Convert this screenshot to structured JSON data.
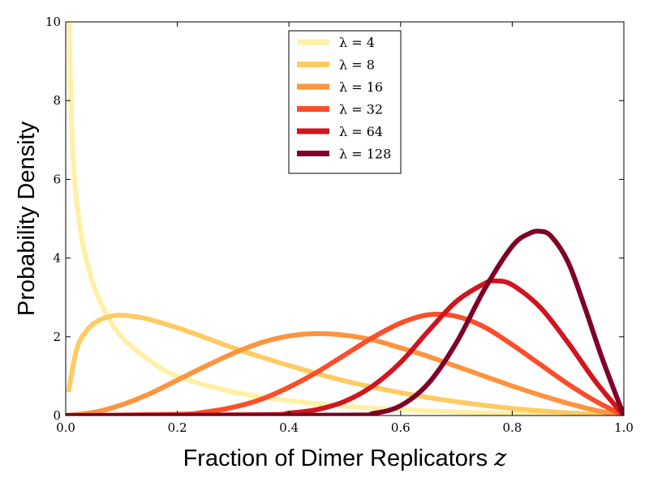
{
  "chart_data": {
    "type": "line",
    "xlabel": "Fraction of Dimer Replicators",
    "xlabel_var": "z",
    "ylabel": "Probability Density",
    "xlim": [
      0.0,
      1.0
    ],
    "ylim": [
      0,
      10
    ],
    "xticks": [
      "0.0",
      "0.2",
      "0.4",
      "0.6",
      "0.8",
      "1.0"
    ],
    "yticks": [
      "0",
      "2",
      "4",
      "6",
      "8",
      "10"
    ],
    "legend": {
      "position": "upper-center"
    },
    "grid": false,
    "series": [
      {
        "name": "λ = 4",
        "color": "#fff0a5",
        "x": [
          0.005,
          0.01,
          0.015,
          0.02,
          0.03,
          0.04,
          0.05,
          0.07,
          0.1,
          0.15,
          0.2,
          0.3,
          0.4,
          0.5,
          0.6,
          0.7,
          0.8,
          0.9,
          1.0
        ],
        "y": [
          10.6,
          7.6,
          6.2,
          5.4,
          4.4,
          3.8,
          3.3,
          2.65,
          2.0,
          1.4,
          1.0,
          0.6,
          0.38,
          0.24,
          0.15,
          0.09,
          0.05,
          0.02,
          0.0
        ]
      },
      {
        "name": "λ = 8",
        "color": "#fecb63",
        "x": [
          0.005,
          0.02,
          0.04,
          0.06,
          0.08,
          0.1,
          0.13,
          0.15,
          0.2,
          0.25,
          0.3,
          0.4,
          0.5,
          0.6,
          0.7,
          0.8,
          0.9,
          1.0
        ],
        "y": [
          0.6,
          1.7,
          2.2,
          2.42,
          2.52,
          2.55,
          2.5,
          2.44,
          2.23,
          1.98,
          1.72,
          1.27,
          0.88,
          0.58,
          0.35,
          0.18,
          0.07,
          0.0
        ]
      },
      {
        "name": "λ = 16",
        "color": "#fd9440",
        "x": [
          0.0,
          0.05,
          0.1,
          0.15,
          0.2,
          0.25,
          0.3,
          0.35,
          0.4,
          0.45,
          0.5,
          0.55,
          0.6,
          0.65,
          0.7,
          0.75,
          0.8,
          0.85,
          0.9,
          0.95,
          1.0
        ],
        "y": [
          0.0,
          0.08,
          0.27,
          0.55,
          0.9,
          1.25,
          1.58,
          1.85,
          2.02,
          2.08,
          2.04,
          1.92,
          1.72,
          1.5,
          1.25,
          1.0,
          0.75,
          0.52,
          0.31,
          0.13,
          0.0
        ]
      },
      {
        "name": "λ = 32",
        "color": "#fc4e2a",
        "x": [
          0.0,
          0.2,
          0.25,
          0.3,
          0.35,
          0.4,
          0.45,
          0.5,
          0.55,
          0.6,
          0.65,
          0.7,
          0.75,
          0.8,
          0.85,
          0.9,
          0.95,
          1.0
        ],
        "y": [
          0.0,
          0.03,
          0.09,
          0.21,
          0.41,
          0.72,
          1.1,
          1.54,
          1.98,
          2.35,
          2.56,
          2.52,
          2.25,
          1.8,
          1.3,
          0.8,
          0.36,
          0.0
        ]
      },
      {
        "name": "λ = 64",
        "color": "#d1141e",
        "x": [
          0.0,
          0.35,
          0.4,
          0.45,
          0.5,
          0.55,
          0.6,
          0.65,
          0.7,
          0.75,
          0.77,
          0.8,
          0.85,
          0.9,
          0.95,
          1.0
        ],
        "y": [
          0.0,
          0.02,
          0.06,
          0.15,
          0.36,
          0.75,
          1.35,
          2.15,
          2.9,
          3.35,
          3.42,
          3.32,
          2.75,
          1.85,
          0.85,
          0.0
        ]
      },
      {
        "name": "λ = 128",
        "color": "#800026",
        "x": [
          0.0,
          0.5,
          0.55,
          0.6,
          0.65,
          0.7,
          0.75,
          0.8,
          0.83,
          0.85,
          0.87,
          0.9,
          0.93,
          0.96,
          1.0
        ],
        "y": [
          0.0,
          0.01,
          0.05,
          0.25,
          0.82,
          1.85,
          3.2,
          4.3,
          4.62,
          4.68,
          4.55,
          3.9,
          2.75,
          1.5,
          0.0
        ]
      }
    ]
  }
}
